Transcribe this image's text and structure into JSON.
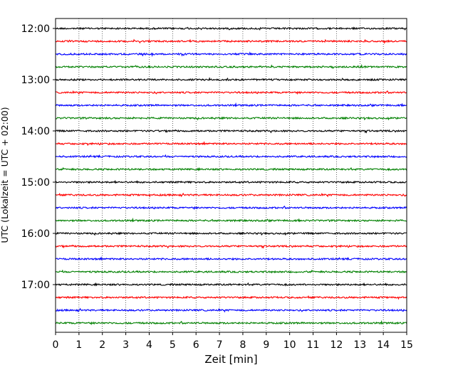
{
  "chart_data": {
    "type": "line",
    "title": "",
    "xlabel": "Zeit  [min]",
    "ylabel": "UTC (Lokalzeit = UTC + 02:00)",
    "xlim": [
      0,
      15
    ],
    "x_ticks": [
      "0",
      "1",
      "2",
      "3",
      "4",
      "5",
      "6",
      "7",
      "8",
      "9",
      "10",
      "11",
      "12",
      "13",
      "14",
      "15"
    ],
    "y_ticks": [
      "12:00",
      "13:00",
      "14:00",
      "15:00",
      "16:00",
      "17:00"
    ],
    "grid": "vertical dotted at each minute",
    "trace_interval_minutes": 15,
    "first_trace_utc": "12:00",
    "last_trace_utc": "17:45",
    "color_cycle": [
      "#000000",
      "#ff0000",
      "#0000ff",
      "#008000"
    ],
    "series": [
      {
        "start": "12:00",
        "color": "#000000"
      },
      {
        "start": "12:15",
        "color": "#ff0000"
      },
      {
        "start": "12:30",
        "color": "#0000ff"
      },
      {
        "start": "12:45",
        "color": "#008000"
      },
      {
        "start": "13:00",
        "color": "#000000"
      },
      {
        "start": "13:15",
        "color": "#ff0000"
      },
      {
        "start": "13:30",
        "color": "#0000ff"
      },
      {
        "start": "13:45",
        "color": "#008000"
      },
      {
        "start": "14:00",
        "color": "#000000"
      },
      {
        "start": "14:15",
        "color": "#ff0000"
      },
      {
        "start": "14:30",
        "color": "#0000ff"
      },
      {
        "start": "14:45",
        "color": "#008000"
      },
      {
        "start": "15:00",
        "color": "#000000"
      },
      {
        "start": "15:15",
        "color": "#ff0000"
      },
      {
        "start": "15:30",
        "color": "#0000ff"
      },
      {
        "start": "15:45",
        "color": "#008000"
      },
      {
        "start": "16:00",
        "color": "#000000"
      },
      {
        "start": "16:15",
        "color": "#ff0000"
      },
      {
        "start": "16:30",
        "color": "#0000ff"
      },
      {
        "start": "16:45",
        "color": "#008000"
      },
      {
        "start": "17:00",
        "color": "#000000"
      },
      {
        "start": "17:15",
        "color": "#ff0000"
      },
      {
        "start": "17:30",
        "color": "#0000ff"
      },
      {
        "start": "17:45",
        "color": "#008000"
      }
    ]
  }
}
